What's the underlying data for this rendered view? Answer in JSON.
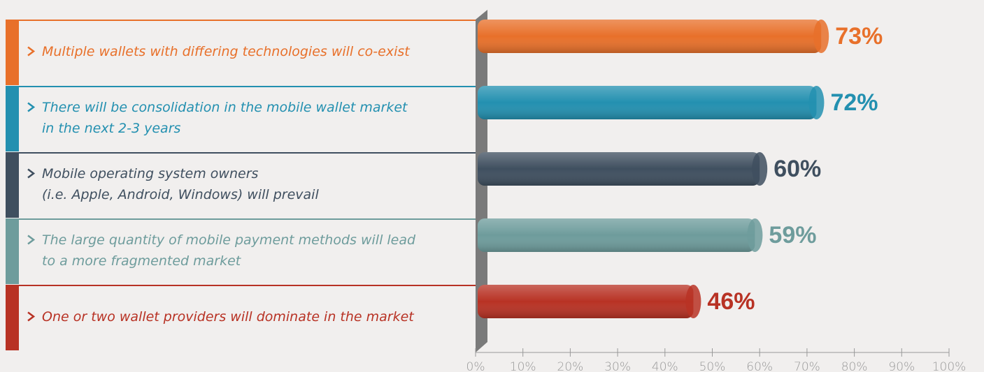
{
  "chart_data": {
    "type": "hbar",
    "categories": [
      "Multiple wallets with differing technologies will co-exist",
      "There will be consolidation in the mobile wallet market\nin the next 2-3 years",
      "Mobile operating system owners\n(i.e. Apple, Android, Windows) will prevail",
      "The large quantity of mobile payment methods will lead\nto a more fragmented market",
      "One or two wallet providers will dominate in the market"
    ],
    "values": [
      73,
      72,
      60,
      59,
      46
    ],
    "value_labels": [
      "73%",
      "72%",
      "60%",
      "59%",
      "46%"
    ],
    "colors": [
      "#e8702a",
      "#2390b0",
      "#3f4f5f",
      "#6e9c9c",
      "#b83224"
    ],
    "xlim": [
      0,
      100
    ],
    "xticks": [
      {
        "value": 0,
        "label": "0%"
      },
      {
        "value": 10,
        "label": "10%"
      },
      {
        "value": 20,
        "label": "20%"
      },
      {
        "value": 30,
        "label": "30%"
      },
      {
        "value": 40,
        "label": "40%"
      },
      {
        "value": 50,
        "label": "50%"
      },
      {
        "value": 60,
        "label": "60%"
      },
      {
        "value": 70,
        "label": "70%"
      },
      {
        "value": 80,
        "label": "80%"
      },
      {
        "value": 90,
        "label": "90%"
      },
      {
        "value": 100,
        "label": "100%"
      }
    ]
  }
}
